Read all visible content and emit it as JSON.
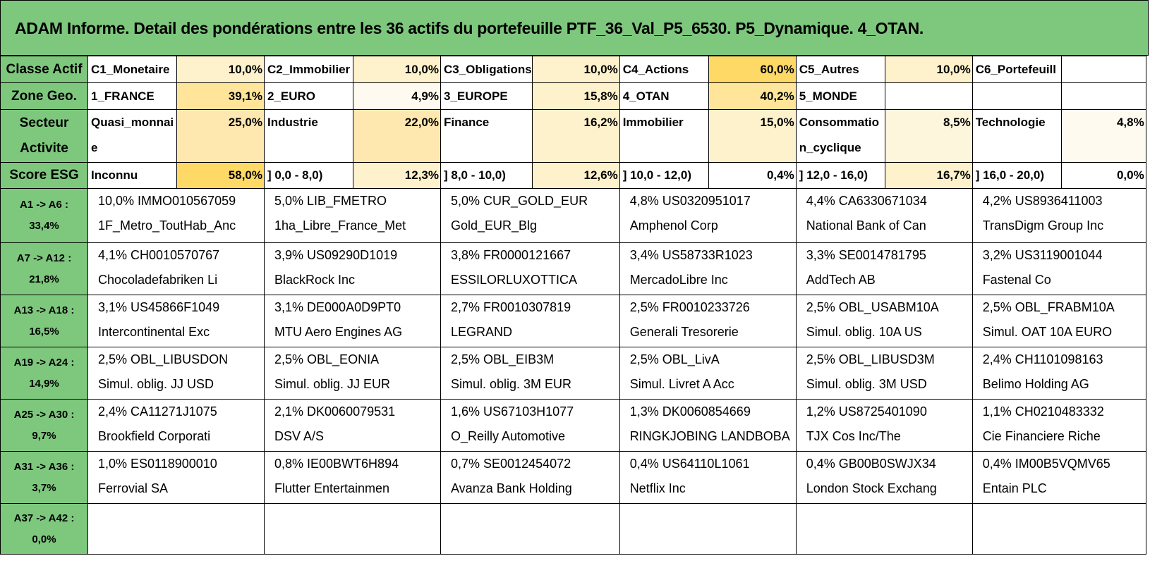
{
  "title": "ADAM Informe. Detail des pondérations entre les 36 actifs du portefeuille PTF_36_Val_P5_6530. P5_Dynamique. 4_OTAN.",
  "summary_rows": [
    {
      "header": "Classe Actif",
      "cells": [
        {
          "label": "C1_Monetaire",
          "value": "10,0%",
          "bg": "#fef2cc"
        },
        {
          "label": "C2_Immobilier",
          "value": "10,0%",
          "bg": "#fef2cc"
        },
        {
          "label": "C3_Obligations",
          "value": "10,0%",
          "bg": "#fef2cc"
        },
        {
          "label": "C4_Actions",
          "value": "60,0%",
          "bg": "#ffd966"
        },
        {
          "label": "C5_Autres",
          "value": "10,0%",
          "bg": "#fef2cc"
        },
        {
          "label": "C6_Portefeuill",
          "value": "",
          "bg": "#ffffff"
        }
      ]
    },
    {
      "header": "Zone Geo.",
      "cells": [
        {
          "label": "1_FRANCE",
          "value": "39,1%",
          "bg": "#fee599"
        },
        {
          "label": "2_EURO",
          "value": "4,9%",
          "bg": "#fffaf0"
        },
        {
          "label": "3_EUROPE",
          "value": "15,8%",
          "bg": "#fef2cc"
        },
        {
          "label": "4_OTAN",
          "value": "40,2%",
          "bg": "#fee599"
        },
        {
          "label": "5_MONDE",
          "value": "",
          "bg": "#ffffff"
        },
        {
          "label": "",
          "value": "",
          "bg": "#ffffff"
        }
      ]
    },
    {
      "header_line1": "Secteur",
      "header_line2": "Activite",
      "cells": [
        {
          "label": "Quasi_monnaie",
          "value": "25,0%",
          "bg": "#fee8b0"
        },
        {
          "label": "Industrie",
          "value": "22,0%",
          "bg": "#fee8b0"
        },
        {
          "label": "Finance",
          "value": "16,2%",
          "bg": "#fef2cc"
        },
        {
          "label": "Immobilier",
          "value": "15,0%",
          "bg": "#fef2cc"
        },
        {
          "label": "Consommation_cyclique",
          "value": "8,5%",
          "bg": "#fef6dc"
        },
        {
          "label": "Technologie",
          "value": "4,8%",
          "bg": "#fffaf0"
        }
      ]
    },
    {
      "header": "Score ESG",
      "cells": [
        {
          "label": "Inconnu",
          "value": "58,0%",
          "bg": "#ffd966"
        },
        {
          "label": "] 0,0 - 8,0)",
          "value": "12,3%",
          "bg": "#fef2cc"
        },
        {
          "label": "] 8,0 - 10,0)",
          "value": "12,6%",
          "bg": "#fef2cc"
        },
        {
          "label": "] 10,0 - 12,0)",
          "value": "0,4%",
          "bg": "#ffffff"
        },
        {
          "label": "] 12,0 - 16,0)",
          "value": "16,7%",
          "bg": "#fef2cc"
        },
        {
          "label": "] 16,0 - 20,0)",
          "value": "0,0%",
          "bg": "#ffffff"
        }
      ]
    }
  ],
  "asset_rows": [
    {
      "range": "A1 -> A6 :",
      "total": "33,4%",
      "assets": [
        {
          "line1": "10,0% IMMO010567059",
          "line2": "1F_Metro_ToutHab_Anc"
        },
        {
          "line1": "5,0% LIB_FMETRO",
          "line2": "1ha_Libre_France_Met"
        },
        {
          "line1": "5,0% CUR_GOLD_EUR",
          "line2": "Gold_EUR_Blg"
        },
        {
          "line1": "4,8% US0320951017",
          "line2": "Amphenol Corp"
        },
        {
          "line1": "4,4% CA6330671034",
          "line2": "National Bank of Can"
        },
        {
          "line1": "4,2% US8936411003",
          "line2": "TransDigm Group Inc"
        }
      ]
    },
    {
      "range": "A7 -> A12 :",
      "total": "21,8%",
      "assets": [
        {
          "line1": "4,1% CH0010570767",
          "line2": "Chocoladefabriken Li"
        },
        {
          "line1": "3,9% US09290D1019",
          "line2": "BlackRock Inc"
        },
        {
          "line1": "3,8% FR0000121667",
          "line2": "ESSILORLUXOTTICA"
        },
        {
          "line1": "3,4% US58733R1023",
          "line2": "MercadoLibre Inc"
        },
        {
          "line1": "3,3% SE0014781795",
          "line2": "AddTech AB"
        },
        {
          "line1": "3,2% US3119001044",
          "line2": "Fastenal Co"
        }
      ]
    },
    {
      "range": "A13 -> A18 :",
      "total": "16,5%",
      "assets": [
        {
          "line1": "3,1% US45866F1049",
          "line2": "Intercontinental Exc"
        },
        {
          "line1": "3,1% DE000A0D9PT0",
          "line2": "MTU Aero Engines AG"
        },
        {
          "line1": "2,7% FR0010307819",
          "line2": "LEGRAND"
        },
        {
          "line1": "2,5% FR0010233726",
          "line2": "Generali Tresorerie"
        },
        {
          "line1": "2,5% OBL_USABM10A",
          "line2": "Simul. oblig. 10A US"
        },
        {
          "line1": "2,5% OBL_FRABM10A",
          "line2": "Simul. OAT 10A EURO"
        }
      ]
    },
    {
      "range": "A19 -> A24 :",
      "total": "14,9%",
      "assets": [
        {
          "line1": "2,5% OBL_LIBUSDON",
          "line2": "Simul. oblig. JJ USD"
        },
        {
          "line1": "2,5% OBL_EONIA",
          "line2": "Simul. oblig. JJ EUR"
        },
        {
          "line1": "2,5% OBL_EIB3M",
          "line2": "Simul. oblig. 3M EUR"
        },
        {
          "line1": "2,5% OBL_LivA",
          "line2": "Simul. Livret A Acc"
        },
        {
          "line1": "2,5% OBL_LIBUSD3M",
          "line2": "Simul. oblig. 3M USD"
        },
        {
          "line1": "2,4% CH1101098163",
          "line2": "Belimo Holding AG"
        }
      ]
    },
    {
      "range": "A25 -> A30 :",
      "total": "9,7%",
      "assets": [
        {
          "line1": "2,4% CA11271J1075",
          "line2": "Brookfield Corporati"
        },
        {
          "line1": "2,1% DK0060079531",
          "line2": "DSV A/S"
        },
        {
          "line1": "1,6% US67103H1077",
          "line2": "O_Reilly Automotive"
        },
        {
          "line1": "1,3% DK0060854669",
          "line2": "RINGKJOBING LANDBOBA"
        },
        {
          "line1": "1,2% US8725401090",
          "line2": "TJX Cos Inc/The"
        },
        {
          "line1": "1,1% CH0210483332",
          "line2": "Cie Financiere Riche"
        }
      ]
    },
    {
      "range": "A31 -> A36 :",
      "total": "3,7%",
      "assets": [
        {
          "line1": "1,0% ES0118900010",
          "line2": "Ferrovial SA"
        },
        {
          "line1": "0,8% IE00BWT6H894",
          "line2": "Flutter Entertainmen"
        },
        {
          "line1": "0,7% SE0012454072",
          "line2": "Avanza Bank Holding"
        },
        {
          "line1": "0,4% US64110L1061",
          "line2": "Netflix Inc"
        },
        {
          "line1": "0,4% GB00B0SWJX34",
          "line2": "London Stock Exchang"
        },
        {
          "line1": "0,4% IM00B5VQMV65",
          "line2": "Entain PLC"
        }
      ]
    },
    {
      "range": "A37 -> A42 :",
      "total": "0,0%",
      "assets": [
        {
          "line1": "",
          "line2": ""
        },
        {
          "line1": "",
          "line2": ""
        },
        {
          "line1": "",
          "line2": ""
        },
        {
          "line1": "",
          "line2": ""
        },
        {
          "line1": "",
          "line2": ""
        },
        {
          "line1": "",
          "line2": ""
        }
      ]
    }
  ]
}
